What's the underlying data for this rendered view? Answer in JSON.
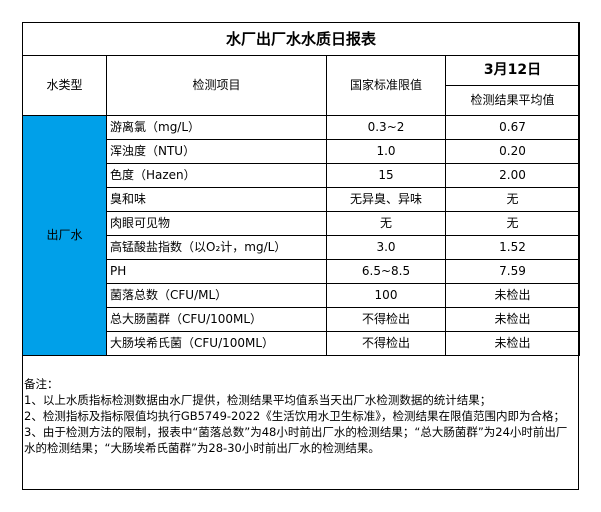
{
  "title": "水厂出厂水水质日报表",
  "headers": {
    "water_type": "水类型",
    "item": "检测项目",
    "limit": "国家标准限值",
    "date": "3月12日",
    "result": "检测结果平均值"
  },
  "water_type_value": "出厂水",
  "accent_color": "#00a0e9",
  "rows": [
    {
      "item": "游离氯（mg/L）",
      "limit": "0.3~2",
      "result": "0.67"
    },
    {
      "item": "浑浊度（NTU）",
      "limit": "1.0",
      "result": "0.20"
    },
    {
      "item": "色度（Hazen）",
      "limit": "15",
      "result": "2.00"
    },
    {
      "item": "臭和味",
      "limit": "无异臭、异味",
      "result": "无"
    },
    {
      "item": "肉眼可见物",
      "limit": "无",
      "result": "无"
    },
    {
      "item": "高锰酸盐指数（以O₂计，mg/L）",
      "limit": "3.0",
      "result": "1.52"
    },
    {
      "item": "PH",
      "limit": "6.5~8.5",
      "result": "7.59"
    },
    {
      "item": "菌落总数（CFU/ML）",
      "limit": "100",
      "result": "未检出"
    },
    {
      "item": "总大肠菌群（CFU/100ML）",
      "limit": "不得检出",
      "result": "未检出"
    },
    {
      "item": "大肠埃希氏菌（CFU/100ML）",
      "limit": "不得检出",
      "result": "未检出"
    }
  ],
  "notes": {
    "heading": "备注：",
    "lines": [
      "1、以上水质指标检测数据由水厂提供，检测结果平均值系当天出厂水检测数据的统计结果；",
      "2、检测指标及指标限值均执行GB5749-2022《生活饮用水卫生标准》，检测结果在限值范围内即为合格；",
      "3、由于检测方法的限制，报表中“菌落总数”为48小时前出厂水的检测结果；“总大肠菌群”为24小时前出厂水的检测结果；“大肠埃希氏菌群”为28-30小时前出厂水的检测结果。"
    ]
  }
}
